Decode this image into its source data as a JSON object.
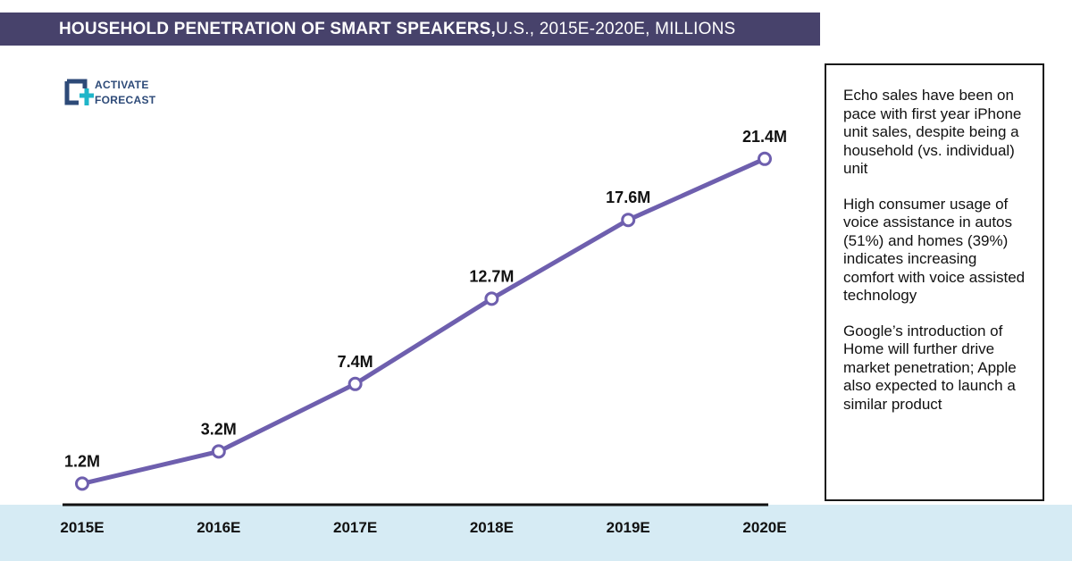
{
  "header": {
    "title_bold": "HOUSEHOLD PENETRATION OF SMART SPEAKERS,",
    "title_rest": " U.S., 2015E-2020E, MILLIONS",
    "background_color": "#47426b"
  },
  "logo": {
    "line1": "ACTIVATE",
    "line2": "FORECAST"
  },
  "notes": [
    "Echo sales have been on pace with first year iPhone unit sales, despite being a household (vs. individual) unit",
    "High consumer usage of voice assistance in autos (51%) and homes (39%) indicates increasing comfort with voice assisted technology",
    "Google’s introduction of Home will further drive market penetration; Apple also expected to launch a similar product"
  ],
  "chart_data": {
    "type": "line",
    "title": "HOUSEHOLD PENETRATION OF SMART SPEAKERS, U.S., 2015E-2020E, MILLIONS",
    "categories": [
      "2015E",
      "2016E",
      "2017E",
      "2018E",
      "2019E",
      "2020E"
    ],
    "series": [
      {
        "values": [
          1.2,
          3.2,
          7.4,
          12.7,
          17.6,
          21.4
        ],
        "labels": [
          "1.2M",
          "3.2M",
          "7.4M",
          "12.7M",
          "17.6M",
          "21.4M"
        ],
        "color": "#6e5fae"
      }
    ],
    "ylim": [
      0,
      23
    ],
    "grid": false,
    "legend": "none",
    "band_color": "#d6ebf4"
  }
}
